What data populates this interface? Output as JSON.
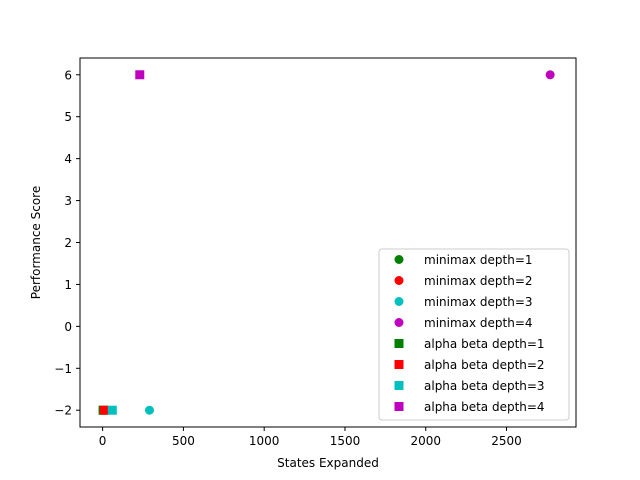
{
  "chart_data": {
    "type": "scatter",
    "title": "",
    "xlabel": "States Expanded",
    "ylabel": "Performance Score",
    "xlim": [
      -140,
      2930
    ],
    "ylim": [
      -2.4,
      6.4
    ],
    "xticks": [
      0,
      500,
      1000,
      1500,
      2000,
      2500
    ],
    "yticks": [
      -2,
      -1,
      0,
      1,
      2,
      3,
      4,
      5,
      6
    ],
    "xtick_labels": [
      "0",
      "500",
      "1000",
      "1500",
      "2000",
      "2500"
    ],
    "ytick_labels": [
      "−2",
      "−1",
      "0",
      "1",
      "2",
      "3",
      "4",
      "5",
      "6"
    ],
    "grid": false,
    "legend_position": "lower-right",
    "series": [
      {
        "name": "minimax depth=1",
        "marker": "circle",
        "color": "#008000",
        "points": [
          [
            3,
            -2
          ]
        ]
      },
      {
        "name": "minimax depth=2",
        "marker": "circle",
        "color": "#ff0000",
        "points": [
          [
            10,
            -2
          ]
        ]
      },
      {
        "name": "minimax depth=3",
        "marker": "circle",
        "color": "#00bfbf",
        "points": [
          [
            290,
            -2
          ]
        ]
      },
      {
        "name": "minimax depth=4",
        "marker": "circle",
        "color": "#bf00bf",
        "points": [
          [
            2770,
            6
          ]
        ]
      },
      {
        "name": "alpha beta depth=1",
        "marker": "square",
        "color": "#008000",
        "points": [
          [
            3,
            -2
          ]
        ]
      },
      {
        "name": "alpha beta depth=2",
        "marker": "square",
        "color": "#ff0000",
        "points": [
          [
            10,
            -2
          ]
        ]
      },
      {
        "name": "alpha beta depth=3",
        "marker": "square",
        "color": "#00bfbf",
        "points": [
          [
            60,
            -2
          ]
        ]
      },
      {
        "name": "alpha beta depth=4",
        "marker": "square",
        "color": "#bf00bf",
        "points": [
          [
            230,
            6
          ]
        ]
      }
    ]
  }
}
